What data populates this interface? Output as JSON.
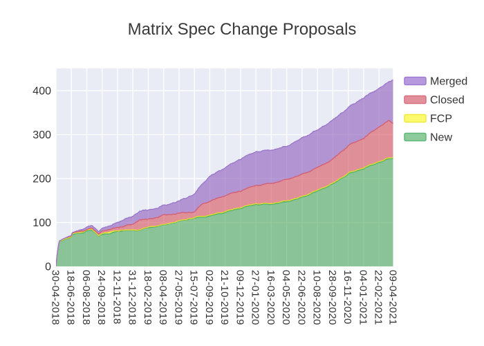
{
  "title": "Matrix Spec Change Proposals",
  "colors": {
    "background": "#ffffff",
    "plot_background": "#e9ecf5",
    "gridline": "#ffffff",
    "title_text": "#3a3a3a",
    "tick_text": "#333333"
  },
  "legend": {
    "items": [
      {
        "label": "Merged",
        "fill": "#b79ade",
        "stroke": "#9d7bd2"
      },
      {
        "label": "Closed",
        "fill": "#e2909a",
        "stroke": "#d86f80"
      },
      {
        "label": "FCP",
        "fill": "#fbf96d",
        "stroke": "#f0e93f"
      },
      {
        "label": "New",
        "fill": "#8ecb9b",
        "stroke": "#60b878"
      }
    ]
  },
  "chart_data": {
    "type": "area",
    "stacked": true,
    "title": "Matrix Spec Change Proposals",
    "xlabel": "",
    "ylabel": "",
    "grid": true,
    "legend_position": "right-top",
    "y_ticks": [
      0,
      100,
      200,
      300,
      400
    ],
    "ylim": [
      0,
      450.5
    ],
    "x_tick_labels": [
      "30-04-2018",
      "18-06-2018",
      "06-08-2018",
      "24-09-2018",
      "12-11-2018",
      "31-12-2018",
      "18-02-2019",
      "08-04-2019",
      "27-05-2019",
      "15-07-2019",
      "02-09-2019",
      "21-10-2019",
      "09-12-2019",
      "27-01-2020",
      "16-03-2020",
      "04-05-2020",
      "22-06-2020",
      "10-08-2020",
      "28-09-2020",
      "16-11-2020",
      "04-01-2021",
      "22-02-2021",
      "09-04-2021"
    ],
    "dates": [
      "2018-04-30",
      "2018-05-03",
      "2018-05-10",
      "2018-06-17",
      "2018-06-21",
      "2018-07-05",
      "2018-07-28",
      "2018-08-06",
      "2018-08-20",
      "2018-09-12",
      "2018-09-24",
      "2018-10-17",
      "2018-11-12",
      "2018-12-31",
      "2019-01-21",
      "2019-02-18",
      "2019-04-08",
      "2019-05-27",
      "2019-07-15",
      "2019-08-12",
      "2019-09-02",
      "2019-10-21",
      "2019-12-09",
      "2020-01-27",
      "2020-03-16",
      "2020-05-04",
      "2020-06-22",
      "2020-08-10",
      "2020-09-28",
      "2020-11-16",
      "2021-01-04",
      "2021-02-22",
      "2021-03-26",
      "2021-04-09"
    ],
    "series": [
      {
        "name": "New",
        "fill": "rgba(80,170,96,0.62)",
        "stroke": "#4db163",
        "values": [
          0,
          22,
          56,
          66,
          72,
          74,
          77,
          81,
          84,
          70,
          75,
          74,
          80,
          81,
          82,
          88,
          95,
          102,
          109,
          112,
          115,
          124,
          132,
          140,
          142,
          148,
          156,
          171,
          188,
          211,
          222,
          236,
          245,
          248
        ]
      },
      {
        "name": "FCP",
        "fill": "rgba(244,241,60,0.80)",
        "stroke": "#e3dc30",
        "values": [
          0,
          0.5,
          1,
          1.5,
          1.5,
          1.5,
          1.5,
          1.5,
          1.5,
          1,
          1.5,
          4,
          1.5,
          1.5,
          1,
          1.5,
          1,
          1.5,
          1.5,
          2,
          2,
          2,
          2,
          2,
          2,
          2,
          2,
          2,
          2,
          2,
          2,
          2,
          2,
          2
        ]
      },
      {
        "name": "Closed",
        "fill": "rgba(214,86,96,0.62)",
        "stroke": "#d45d6f",
        "values": [
          0,
          0.5,
          1,
          2.5,
          2.5,
          2.5,
          2.5,
          2.5,
          3,
          3,
          6,
          5,
          6.5,
          13,
          24,
          18,
          21,
          17,
          13,
          30,
          32,
          36,
          37,
          42,
          46,
          48,
          50,
          52,
          55,
          62,
          67,
          80,
          85,
          77
        ]
      },
      {
        "name": "Merged",
        "fill": "rgba(146,98,188,0.64)",
        "stroke": "#9a76cc",
        "values": [
          0,
          0,
          0,
          0.5,
          0.5,
          1,
          5,
          5,
          6,
          6,
          7,
          8,
          12,
          18,
          19,
          21,
          22,
          28,
          40,
          46,
          57,
          64,
          73,
          76,
          76,
          76,
          83,
          85,
          89,
          87,
          92,
          87,
          88,
          101
        ]
      }
    ]
  }
}
